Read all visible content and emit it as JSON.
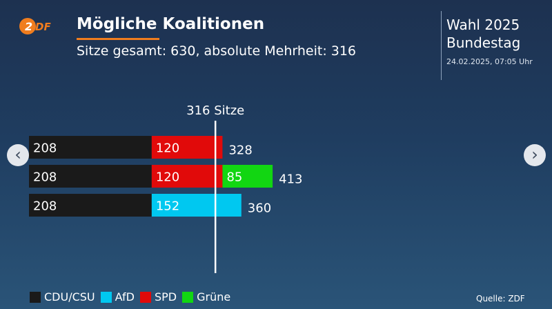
{
  "header": {
    "logo_text": "ZDF",
    "title": "Mögliche Koalitionen",
    "subtitle": "Sitze gesamt: 630, absolute Mehrheit: 316"
  },
  "election": {
    "line1": "Wahl 2025",
    "line2": "Bundestag",
    "timestamp": "24.02.2025, 07:05 Uhr"
  },
  "nav": {
    "prev_icon": "chevron-left-icon",
    "next_icon": "chevron-right-icon"
  },
  "colors": {
    "brand": "#f07d1e",
    "background": "#1f3a5c",
    "marker": "#ffffff"
  },
  "chart_data": {
    "type": "bar",
    "orientation": "horizontal",
    "stacked": true,
    "title": "Mögliche Koalitionen",
    "subtitle": "Sitze gesamt: 630, absolute Mehrheit: 316",
    "threshold": {
      "value": 316,
      "label": "316 Sitze"
    },
    "coalitions": [
      {
        "segments": [
          {
            "party": "CDU/CSU",
            "value": 208
          },
          {
            "party": "SPD",
            "value": 120
          }
        ],
        "total": 328
      },
      {
        "segments": [
          {
            "party": "CDU/CSU",
            "value": 208
          },
          {
            "party": "SPD",
            "value": 120
          },
          {
            "party": "Grüne",
            "value": 85
          }
        ],
        "total": 413
      },
      {
        "segments": [
          {
            "party": "CDU/CSU",
            "value": 208
          },
          {
            "party": "AfD",
            "value": 152
          }
        ],
        "total": 360
      }
    ],
    "legend": [
      {
        "name": "CDU/CSU",
        "color": "#1a1a1a"
      },
      {
        "name": "AfD",
        "color": "#00c8f0"
      },
      {
        "name": "SPD",
        "color": "#e10a0a"
      },
      {
        "name": "Grüne",
        "color": "#12d612"
      }
    ],
    "legend_position": "bottom-left",
    "grid": false
  },
  "source": "Quelle: ZDF"
}
